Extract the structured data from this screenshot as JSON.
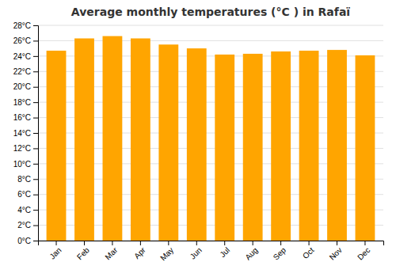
{
  "chart_data": {
    "type": "bar",
    "title": "Average monthly temperatures (°C ) in Rafaï",
    "categories": [
      "Jan",
      "Feb",
      "Mar",
      "Apr",
      "May",
      "Jun",
      "Jul",
      "Aug",
      "Sep",
      "Oct",
      "Nov",
      "Dec"
    ],
    "values": [
      24.7,
      26.3,
      26.6,
      26.3,
      25.5,
      25.0,
      24.2,
      24.3,
      24.6,
      24.7,
      24.8,
      24.1
    ],
    "color": "#FFA500",
    "ylim": [
      0,
      28
    ],
    "yticks": [
      {
        "value": 0,
        "label": "0°C"
      },
      {
        "value": 2,
        "label": "2°C"
      },
      {
        "value": 4,
        "label": "4°C"
      },
      {
        "value": 6,
        "label": "6°C"
      },
      {
        "value": 8,
        "label": "8°C"
      },
      {
        "value": 10,
        "label": "10°C"
      },
      {
        "value": 12,
        "label": "12°C"
      },
      {
        "value": 14,
        "label": "14°C"
      },
      {
        "value": 16,
        "label": "16°C"
      },
      {
        "value": 18,
        "label": "18°C"
      },
      {
        "value": 20,
        "label": "20°C"
      },
      {
        "value": 22,
        "label": "22°C"
      },
      {
        "value": 24,
        "label": "24°C"
      },
      {
        "value": 26,
        "label": "26°C"
      },
      {
        "value": 28,
        "label": "28°C"
      }
    ],
    "grid": true
  }
}
